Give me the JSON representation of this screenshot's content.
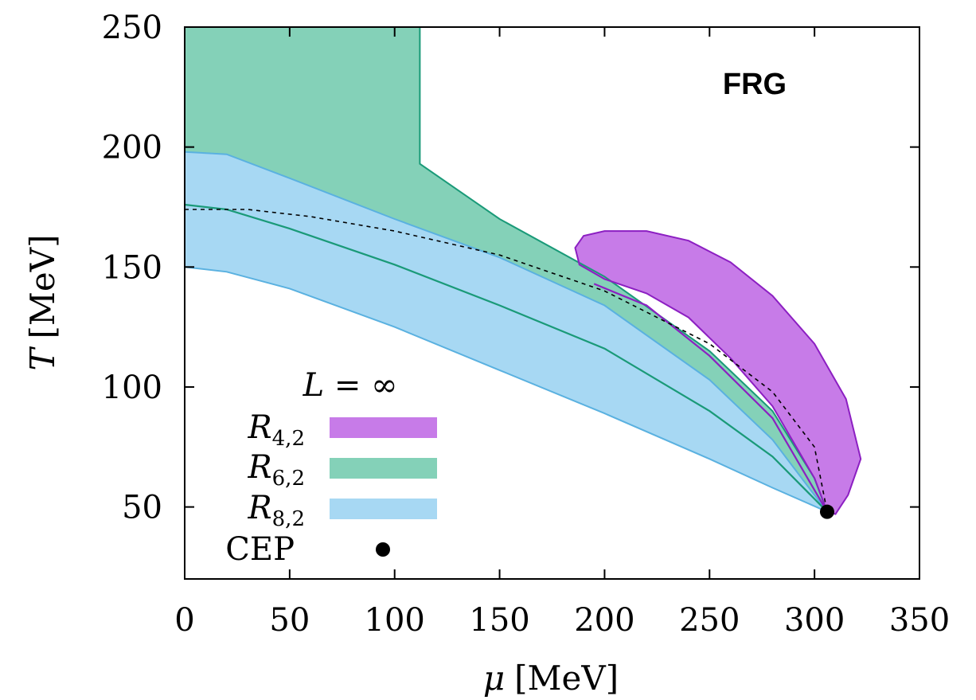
{
  "chart_data": {
    "type": "area",
    "annotation": "FRG",
    "xlabel": {
      "symbol": "μ",
      "unit": "[MeV]"
    },
    "ylabel": {
      "symbol": "T",
      "unit": "[MeV]"
    },
    "xlim": [
      0,
      350
    ],
    "ylim": [
      20,
      250
    ],
    "xticks": [
      0,
      50,
      100,
      150,
      200,
      250,
      300,
      350
    ],
    "yticks": [
      50,
      100,
      150,
      200,
      250
    ],
    "legend": {
      "title": "L = ∞",
      "position": "bottom-left",
      "entries": [
        {
          "base": "R",
          "sub": "4,2",
          "color": "#c77be8"
        },
        {
          "base": "R",
          "sub": "6,2",
          "color": "#84d1b8"
        },
        {
          "base": "R",
          "sub": "8,2",
          "color": "#a7d8f3"
        },
        {
          "label": "CEP",
          "marker": "dot",
          "color": "#000000"
        }
      ]
    },
    "cep": {
      "x": 306,
      "y": 48
    },
    "series": [
      {
        "key": "R6,2",
        "fill": "#84d1b8",
        "stroke": "#1a9a78",
        "upper": [
          [
            0,
            250
          ],
          [
            112,
            250
          ],
          [
            112,
            193
          ],
          [
            150,
            170
          ],
          [
            200,
            146
          ],
          [
            250,
            115
          ],
          [
            280,
            90
          ],
          [
            300,
            62
          ],
          [
            306,
            48
          ]
        ],
        "lower": [
          [
            0,
            150
          ],
          [
            20,
            148
          ],
          [
            50,
            141
          ],
          [
            100,
            125
          ],
          [
            150,
            107
          ],
          [
            200,
            89
          ],
          [
            250,
            70
          ],
          [
            280,
            58
          ],
          [
            306,
            48
          ]
        ],
        "middle": [
          [
            0,
            176
          ],
          [
            20,
            174
          ],
          [
            50,
            166
          ],
          [
            100,
            151
          ],
          [
            150,
            134
          ],
          [
            200,
            116
          ],
          [
            250,
            90
          ],
          [
            280,
            71
          ],
          [
            306,
            48
          ]
        ]
      },
      {
        "key": "R8,2",
        "fill": "#a7d8f3",
        "stroke": "#5ab1e0",
        "upper": [
          [
            0,
            198
          ],
          [
            20,
            197
          ],
          [
            50,
            187
          ],
          [
            100,
            170
          ],
          [
            150,
            154
          ],
          [
            200,
            134
          ],
          [
            250,
            103
          ],
          [
            280,
            78
          ],
          [
            306,
            48
          ]
        ],
        "lower": [
          [
            0,
            150
          ],
          [
            20,
            148
          ],
          [
            50,
            141
          ],
          [
            100,
            125
          ],
          [
            150,
            107
          ],
          [
            200,
            89
          ],
          [
            250,
            70
          ],
          [
            280,
            58
          ],
          [
            306,
            48
          ]
        ]
      },
      {
        "key": "R4,2",
        "fill": "#c77be8",
        "stroke": "#8c1fc2",
        "boundary": [
          [
            186,
            158
          ],
          [
            190,
            163
          ],
          [
            200,
            165
          ],
          [
            220,
            165
          ],
          [
            240,
            161
          ],
          [
            260,
            152
          ],
          [
            280,
            138
          ],
          [
            300,
            118
          ],
          [
            315,
            95
          ],
          [
            322,
            70
          ],
          [
            316,
            55
          ],
          [
            310,
            47
          ],
          [
            306,
            48
          ],
          [
            300,
            62
          ],
          [
            280,
            92
          ],
          [
            260,
            112
          ],
          [
            240,
            129
          ],
          [
            220,
            139
          ],
          [
            200,
            145
          ],
          [
            188,
            151
          ],
          [
            186,
            158
          ]
        ],
        "middle": [
          [
            195,
            143
          ],
          [
            220,
            134
          ],
          [
            250,
            113
          ],
          [
            280,
            87
          ],
          [
            306,
            48
          ]
        ]
      }
    ],
    "dashed_line": [
      [
        0,
        174
      ],
      [
        30,
        174
      ],
      [
        60,
        171
      ],
      [
        100,
        165
      ],
      [
        150,
        155
      ],
      [
        200,
        140
      ],
      [
        250,
        118
      ],
      [
        280,
        98
      ],
      [
        300,
        75
      ],
      [
        306,
        48
      ]
    ]
  }
}
